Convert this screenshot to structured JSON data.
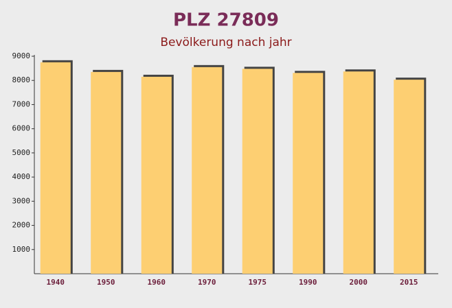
{
  "chart_data": {
    "type": "bar",
    "title": "PLZ 27809",
    "subtitle": "Bevölkerung nach jahr",
    "categories": [
      "1940",
      "1950",
      "1960",
      "1970",
      "1975",
      "1990",
      "2000",
      "2015"
    ],
    "values": [
      8750,
      8350,
      8150,
      8550,
      8480,
      8310,
      8370,
      8030
    ],
    "color": "#fdcf72",
    "ylim": [
      0,
      9000
    ],
    "yticks": [
      1000,
      2000,
      3000,
      4000,
      5000,
      6000,
      7000,
      8000,
      9000
    ],
    "grid": false
  }
}
